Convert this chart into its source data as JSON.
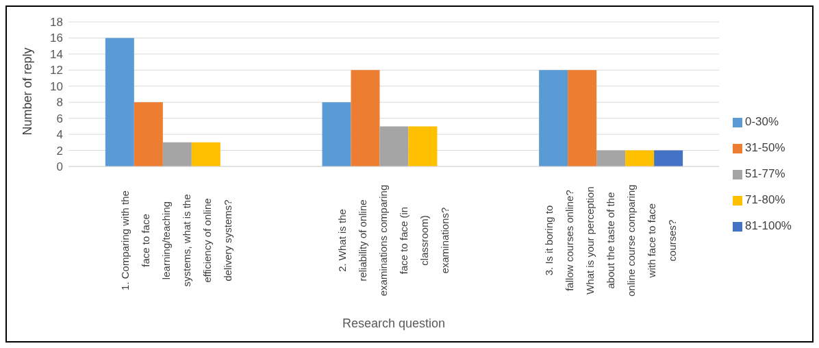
{
  "chart_data": {
    "type": "bar",
    "xlabel": "Research question",
    "ylabel": "Number of reply",
    "categories": [
      "1. Comparing with the face to face learning/teaching systems, what is the efficiency of online delivery systems?",
      "2. What is the reliability of online examinations comparing face to face (in classroom) examinations?",
      "3. Is it boring to fallow courses online? What is your perception about the taste of the online course comparing with face to face courses?"
    ],
    "series": [
      {
        "name": "0-30%",
        "color": "#5b9bd5",
        "values": [
          16,
          8,
          12
        ]
      },
      {
        "name": "31-50%",
        "color": "#ed7d31",
        "values": [
          8,
          12,
          12
        ]
      },
      {
        "name": "51-77%",
        "color": "#a5a5a5",
        "values": [
          3,
          5,
          2
        ]
      },
      {
        "name": "71-80%",
        "color": "#ffc000",
        "values": [
          3,
          5,
          2
        ]
      },
      {
        "name": "81-100%",
        "color": "#4472c4",
        "values": [
          0,
          0,
          2
        ]
      }
    ],
    "ylim": [
      0,
      18
    ],
    "yticks": [
      0,
      2,
      4,
      6,
      8,
      10,
      12,
      14,
      16,
      18
    ],
    "grid": "y",
    "legend": "right"
  }
}
